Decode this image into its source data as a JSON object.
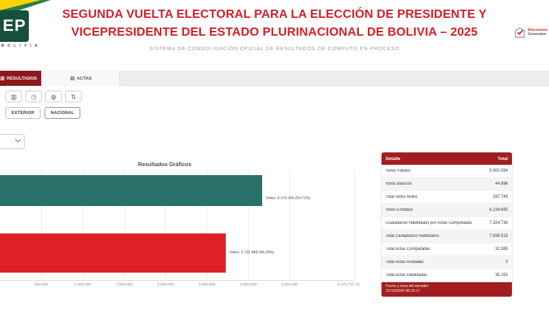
{
  "header": {
    "title_line1": "SEGUNDA VUELTA ELECTORAL PARA LA ELECCIÓN DE PRESIDENTE Y",
    "title_line2": "VICEPRESIDENTE DEL ESTADO PLURINACIONAL DE BOLIVIA – 2025",
    "subtitle": "SISTEMA DE CONSOLIDACIÓN OFICIAL DE RESULTADOS DE CÓMPUTO EN PROCESO",
    "logo_oep_text": "EP",
    "logo_oep_caption": "B O L I V I A",
    "logo_right_line1": "Elecciones",
    "logo_right_line2": "Generales"
  },
  "tabs": {
    "resultados": "RESULTADOS",
    "actas": "ACTAS"
  },
  "toolbar": {
    "icons": [
      {
        "name": "bar-chart",
        "glyph": "▥"
      },
      {
        "name": "clock",
        "glyph": "◷"
      },
      {
        "name": "globe",
        "glyph": "◍"
      },
      {
        "name": "sort",
        "glyph": "⇅"
      }
    ]
  },
  "filters": {
    "exterior": "EXTERIOR",
    "nacional": "NACIONAL"
  },
  "chart": {
    "title": "Resultados Gráficos",
    "bar1_label": "Votos: 3.170.165 (53.71%)",
    "bar2_label": "Votos: 2.731.889 (46.29%)",
    "axis_ticks": [
      "500.000",
      "1.000.000",
      "1.500.000",
      "2.000.000",
      "2.500.000",
      "3.000.000",
      "3.500.000"
    ],
    "axis_max": "4.279.722,75"
  },
  "chart_data": {
    "type": "bar",
    "orientation": "horizontal",
    "title": "Resultados Gráficos",
    "series": [
      {
        "votes": 3170165,
        "percent": 53.71,
        "color": "#2A706B",
        "label": "Votos: 3.170.165 (53.71%)"
      },
      {
        "votes": 2731889,
        "percent": 46.29,
        "color": "#E02027",
        "label": "Votos: 2.731.889 (46.29%)"
      }
    ],
    "xlim": [
      0,
      4279722.75
    ],
    "x_ticks": [
      500000,
      1000000,
      1500000,
      2000000,
      2500000,
      3000000,
      3500000
    ],
    "grid": true,
    "legend": false
  },
  "table": {
    "col_detalle": "Detalle",
    "col_total": "Total",
    "rows": [
      {
        "label": "Votos Válidos",
        "value": "5.902.054"
      },
      {
        "label": "Votos Blancos",
        "value": "44.896"
      },
      {
        "label": "Total Votos Nulos",
        "value": "287.745"
      },
      {
        "label": "Votos Emitidos",
        "value": "6.234.695"
      },
      {
        "label": "Ciudadanos Habilitados por Actas Computadas",
        "value": "7.324.736"
      },
      {
        "label": "Total Ciudadanos Habilitados",
        "value": "7.936.515"
      },
      {
        "label": "Total Actas Computadas",
        "value": "32.385"
      },
      {
        "label": "Total Actas Anuladas",
        "value": "0"
      },
      {
        "label": "Total Actas Habilitadas",
        "value": "35.253"
      }
    ],
    "footer_label": "Fecha y hora del servidor:",
    "footer_value": "21/10/2025 06:31:17"
  }
}
